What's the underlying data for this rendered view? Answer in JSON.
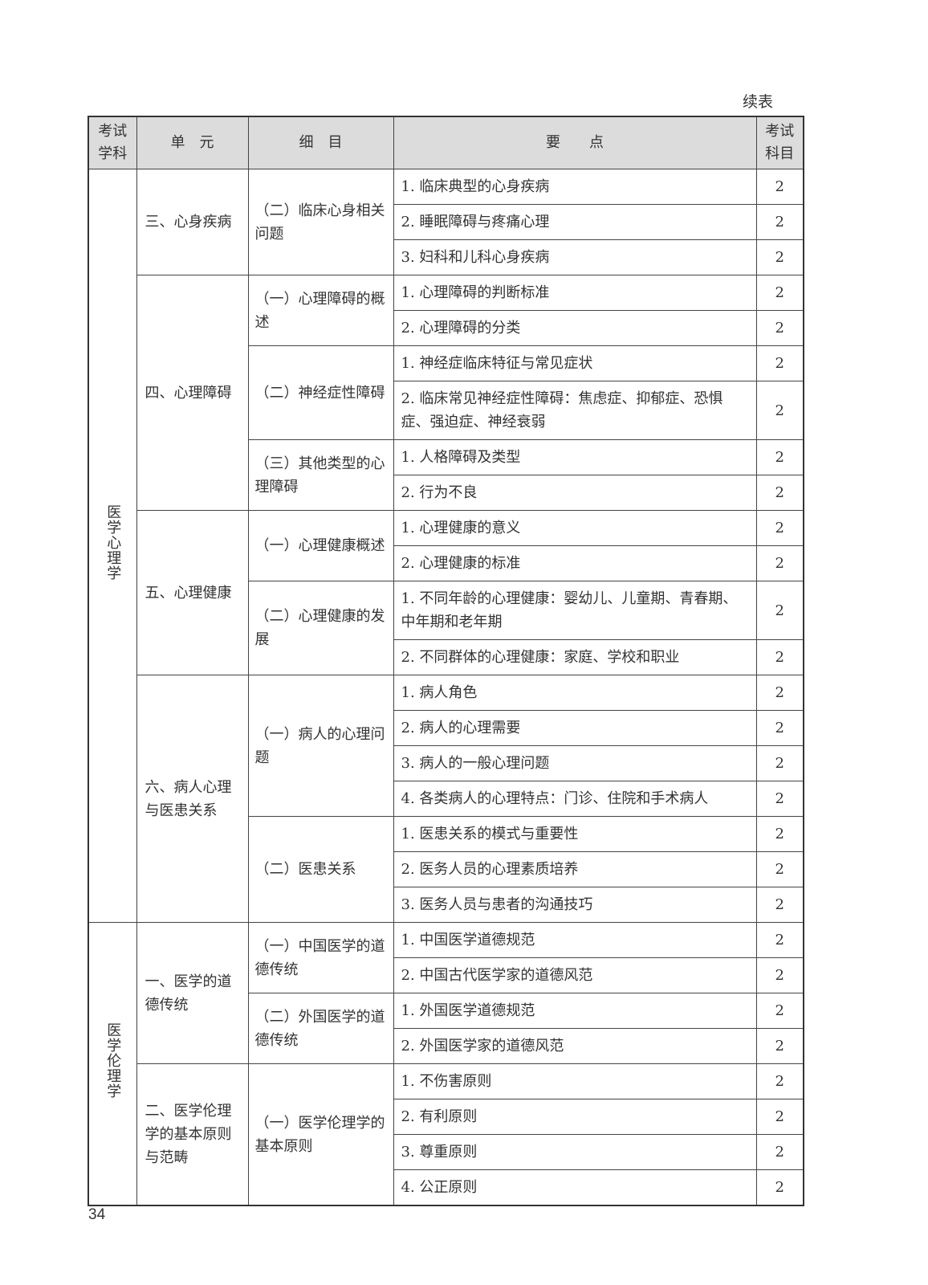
{
  "continued_label": "续表",
  "page_number": "34",
  "headers": [
    "考试学科",
    "单　元",
    "细　目",
    "要　　点",
    "考试科目"
  ],
  "subjects": [
    {
      "name": "医学心理学",
      "units": [
        {
          "name": "三、心身疾病",
          "details": [
            {
              "name": "（二）临床心身相关问题",
              "points": [
                {
                  "text": "1. 临床典型的心身疾病",
                  "score": "2"
                },
                {
                  "text": "2. 睡眠障碍与疼痛心理",
                  "score": "2"
                },
                {
                  "text": "3. 妇科和儿科心身疾病",
                  "score": "2"
                }
              ]
            }
          ]
        },
        {
          "name": "四、心理障碍",
          "details": [
            {
              "name": "（一）心理障碍的概述",
              "points": [
                {
                  "text": "1. 心理障碍的判断标准",
                  "score": "2"
                },
                {
                  "text": "2. 心理障碍的分类",
                  "score": "2"
                }
              ]
            },
            {
              "name": "（二）神经症性障碍",
              "points": [
                {
                  "text": "1. 神经症临床特征与常见症状",
                  "score": "2"
                },
                {
                  "text": "2. 临床常见神经症性障碍：焦虑症、抑郁症、恐惧症、强迫症、神经衰弱",
                  "score": "2"
                }
              ]
            },
            {
              "name": "（三）其他类型的心理障碍",
              "points": [
                {
                  "text": "1. 人格障碍及类型",
                  "score": "2"
                },
                {
                  "text": "2. 行为不良",
                  "score": "2"
                }
              ]
            }
          ]
        },
        {
          "name": "五、心理健康",
          "details": [
            {
              "name": "（一）心理健康概述",
              "points": [
                {
                  "text": "1. 心理健康的意义",
                  "score": "2"
                },
                {
                  "text": "2. 心理健康的标准",
                  "score": "2"
                }
              ]
            },
            {
              "name": "（二）心理健康的发展",
              "points": [
                {
                  "text": "1. 不同年龄的心理健康：婴幼儿、儿童期、青春期、中年期和老年期",
                  "score": "2"
                },
                {
                  "text": "2. 不同群体的心理健康：家庭、学校和职业",
                  "score": "2"
                }
              ]
            }
          ]
        },
        {
          "name": "六、病人心理与医患关系",
          "details": [
            {
              "name": "（一）病人的心理问题",
              "points": [
                {
                  "text": "1. 病人角色",
                  "score": "2"
                },
                {
                  "text": "2. 病人的心理需要",
                  "score": "2"
                },
                {
                  "text": "3. 病人的一般心理问题",
                  "score": "2"
                },
                {
                  "text": "4. 各类病人的心理特点：门诊、住院和手术病人",
                  "score": "2"
                }
              ]
            },
            {
              "name": "（二）医患关系",
              "points": [
                {
                  "text": "1. 医患关系的模式与重要性",
                  "score": "2"
                },
                {
                  "text": "2. 医务人员的心理素质培养",
                  "score": "2"
                },
                {
                  "text": "3. 医务人员与患者的沟通技巧",
                  "score": "2"
                }
              ]
            }
          ]
        }
      ]
    },
    {
      "name": "医学伦理学",
      "units": [
        {
          "name": "一、医学的道德传统",
          "details": [
            {
              "name": "（一）中国医学的道德传统",
              "points": [
                {
                  "text": "1. 中国医学道德规范",
                  "score": "2"
                },
                {
                  "text": "2. 中国古代医学家的道德风范",
                  "score": "2"
                }
              ]
            },
            {
              "name": "（二）外国医学的道德传统",
              "points": [
                {
                  "text": "1. 外国医学道德规范",
                  "score": "2"
                },
                {
                  "text": "2. 外国医学家的道德风范",
                  "score": "2"
                }
              ]
            }
          ]
        },
        {
          "name": "二、医学伦理学的基本原则与范畴",
          "details": [
            {
              "name": "（一）医学伦理学的基本原则",
              "points": [
                {
                  "text": "1. 不伤害原则",
                  "score": "2"
                },
                {
                  "text": "2. 有利原则",
                  "score": "2"
                },
                {
                  "text": "3. 尊重原则",
                  "score": "2"
                },
                {
                  "text": "4. 公正原则",
                  "score": "2"
                }
              ]
            }
          ]
        }
      ]
    }
  ]
}
